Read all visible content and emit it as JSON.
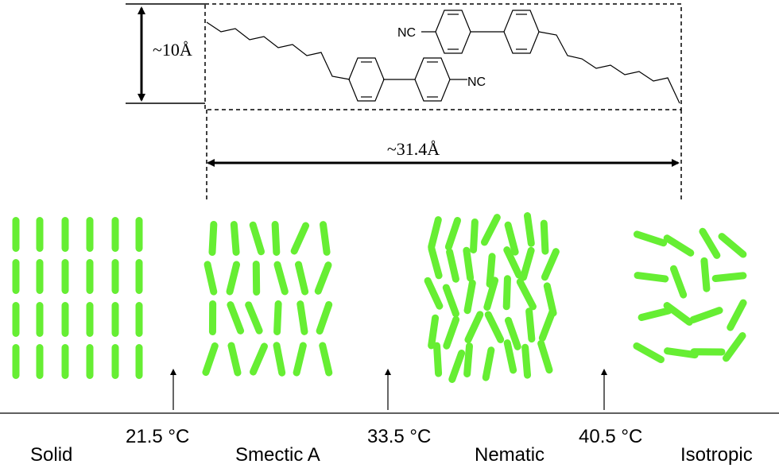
{
  "dimensions": {
    "height": "~10Å",
    "length": "~31.4Å"
  },
  "molecule": {
    "upper_group": "NC",
    "lower_group": "NC"
  },
  "phases": [
    "Solid",
    "Smectic A",
    "Nematic",
    "Isotropic"
  ],
  "transitions": [
    "21.5 °C",
    "33.5 °C",
    "40.5 °C"
  ]
}
